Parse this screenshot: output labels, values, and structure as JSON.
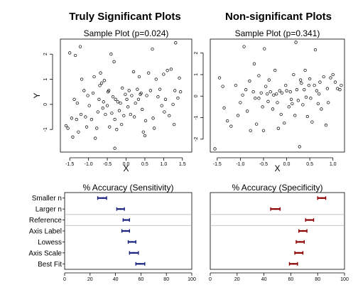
{
  "header": {
    "left_title": "Truly Significant Plots",
    "right_title": "Non-significant Plots"
  },
  "chart_data": [
    {
      "type": "scatter",
      "title": "Sample Plot (p=0.024)",
      "xlabel": "X",
      "ylabel": "Y",
      "xlim": [
        -1.75,
        1.75
      ],
      "ylim": [
        -1.9,
        2.6
      ],
      "xticks": [
        "-1.5",
        "-1.0",
        "-0.5",
        "0.0",
        "0.5",
        "1.0",
        "1.5"
      ],
      "yticks": [
        "-1",
        "0",
        "1",
        "2"
      ],
      "points": [
        [
          -1.6,
          -0.85
        ],
        [
          -1.55,
          -0.95
        ],
        [
          -1.5,
          2.05
        ],
        [
          -1.45,
          -0.55
        ],
        [
          -1.42,
          -1.3
        ],
        [
          -1.38,
          0.2
        ],
        [
          -1.35,
          1.95
        ],
        [
          -1.32,
          -0.6
        ],
        [
          -1.3,
          0.05
        ],
        [
          -1.27,
          -1.1
        ],
        [
          -1.22,
          2.3
        ],
        [
          -1.2,
          -0.4
        ],
        [
          -1.18,
          1.0
        ],
        [
          -1.12,
          0.55
        ],
        [
          -1.08,
          -0.5
        ],
        [
          -1.05,
          -0.9
        ],
        [
          -1.02,
          0.35
        ],
        [
          -0.98,
          -0.05
        ],
        [
          -0.92,
          -0.6
        ],
        [
          -0.88,
          0.45
        ],
        [
          -0.85,
          1.1
        ],
        [
          -0.82,
          -1.35
        ],
        [
          -0.78,
          -0.95
        ],
        [
          -0.75,
          -0.3
        ],
        [
          -0.72,
          0.2
        ],
        [
          -0.7,
          0.75
        ],
        [
          -0.68,
          1.25
        ],
        [
          -0.65,
          0.85
        ],
        [
          -0.62,
          -0.15
        ],
        [
          -0.6,
          0.1
        ],
        [
          -0.58,
          0.95
        ],
        [
          -0.55,
          -0.4
        ],
        [
          -0.5,
          -0.05
        ],
        [
          -0.48,
          0.5
        ],
        [
          -0.46,
          0.55
        ],
        [
          -0.44,
          -0.9
        ],
        [
          -0.4,
          2.0
        ],
        [
          -0.38,
          -0.35
        ],
        [
          -0.35,
          0.3
        ],
        [
          -0.32,
          1.7
        ],
        [
          -0.3,
          -0.6
        ],
        [
          -0.28,
          0.2
        ],
        [
          -0.25,
          -1.0
        ],
        [
          -0.22,
          0.1
        ],
        [
          -0.18,
          -0.25
        ],
        [
          -0.15,
          0.05
        ],
        [
          -0.12,
          -0.8
        ],
        [
          -0.1,
          0.65
        ],
        [
          -0.06,
          -0.45
        ],
        [
          -0.02,
          0.4
        ],
        [
          0.02,
          0.2
        ],
        [
          0.05,
          -0.1
        ],
        [
          0.08,
          0.55
        ],
        [
          0.12,
          -0.4
        ],
        [
          0.15,
          0.35
        ],
        [
          0.2,
          1.3
        ],
        [
          0.22,
          -0.5
        ],
        [
          0.25,
          0.05
        ],
        [
          0.3,
          0.6
        ],
        [
          0.33,
          0.2
        ],
        [
          0.35,
          1.1
        ],
        [
          0.38,
          0.4
        ],
        [
          0.4,
          0.45
        ],
        [
          0.43,
          -0.2
        ],
        [
          0.46,
          -1.1
        ],
        [
          0.5,
          -1.25
        ],
        [
          0.52,
          -0.65
        ],
        [
          0.55,
          0.35
        ],
        [
          0.6,
          1.25
        ],
        [
          0.65,
          0.55
        ],
        [
          0.7,
          2.2
        ],
        [
          0.72,
          -0.55
        ],
        [
          0.75,
          -0.95
        ],
        [
          0.8,
          1.0
        ],
        [
          0.85,
          0.3
        ],
        [
          0.9,
          0.6
        ],
        [
          0.95,
          -0.05
        ],
        [
          1.0,
          1.2
        ],
        [
          1.02,
          -0.3
        ],
        [
          1.05,
          0.2
        ],
        [
          1.1,
          1.35
        ],
        [
          1.15,
          -0.45
        ],
        [
          1.2,
          1.4
        ],
        [
          1.25,
          0.0
        ],
        [
          1.28,
          -0.8
        ],
        [
          1.3,
          0.55
        ],
        [
          1.32,
          2.45
        ],
        [
          1.38,
          0.25
        ],
        [
          1.42,
          1.05
        ],
        [
          1.45,
          0.5
        ],
        [
          -0.3,
          -1.75
        ]
      ]
    },
    {
      "type": "scatter",
      "title": "Sample Plot (p=0.341)",
      "xlabel": "X",
      "ylabel": "",
      "xlim": [
        -1.65,
        1.25
      ],
      "ylim": [
        -2.6,
        2.65
      ],
      "xticks": [
        "-1.5",
        "-1.0",
        "-0.5",
        "0.0",
        "0.5",
        "1.0"
      ],
      "yticks": [
        "-2",
        "-1",
        "0",
        "1",
        "2"
      ],
      "points": [
        [
          -1.55,
          -2.45
        ],
        [
          -1.45,
          0.85
        ],
        [
          -1.35,
          -0.55
        ],
        [
          -1.28,
          -1.15
        ],
        [
          -1.2,
          -1.4
        ],
        [
          -1.1,
          0.5
        ],
        [
          -1.05,
          -0.9
        ],
        [
          -1.0,
          -0.3
        ],
        [
          -0.95,
          0.05
        ],
        [
          -0.92,
          2.3
        ],
        [
          -0.88,
          0.3
        ],
        [
          -0.85,
          -0.7
        ],
        [
          -0.8,
          0.7
        ],
        [
          -0.78,
          -1.6
        ],
        [
          -0.72,
          0.2
        ],
        [
          -0.7,
          1.5
        ],
        [
          -0.68,
          -0.1
        ],
        [
          -0.65,
          -1.3
        ],
        [
          -0.6,
          0.95
        ],
        [
          -0.55,
          0.15
        ],
        [
          -0.52,
          -0.5
        ],
        [
          -0.5,
          -1.6
        ],
        [
          -0.48,
          2.2
        ],
        [
          -0.45,
          0.45
        ],
        [
          -0.42,
          0.1
        ],
        [
          -0.4,
          -0.25
        ],
        [
          -0.38,
          0.75
        ],
        [
          -0.35,
          0.2
        ],
        [
          -0.3,
          -0.6
        ],
        [
          -0.28,
          0.05
        ],
        [
          -0.25,
          1.2
        ],
        [
          -0.22,
          0.1
        ],
        [
          -0.2,
          -0.3
        ],
        [
          -0.18,
          -1.5
        ],
        [
          -0.15,
          0.25
        ],
        [
          -0.12,
          -0.85
        ],
        [
          -0.1,
          0.15
        ],
        [
          -0.05,
          -1.25
        ],
        [
          -0.02,
          0.5
        ],
        [
          0.0,
          0.25
        ],
        [
          0.05,
          -0.5
        ],
        [
          0.08,
          0.2
        ],
        [
          0.12,
          -0.35
        ],
        [
          0.15,
          1.0
        ],
        [
          0.18,
          -0.9
        ],
        [
          0.2,
          2.5
        ],
        [
          0.22,
          0.3
        ],
        [
          0.25,
          -0.2
        ],
        [
          0.28,
          -2.35
        ],
        [
          0.3,
          0.75
        ],
        [
          0.32,
          0.6
        ],
        [
          0.35,
          -0.4
        ],
        [
          0.38,
          0.3
        ],
        [
          0.4,
          1.2
        ],
        [
          0.42,
          -0.05
        ],
        [
          0.45,
          -0.95
        ],
        [
          0.48,
          0.5
        ],
        [
          0.5,
          0.8
        ],
        [
          0.52,
          -0.1
        ],
        [
          0.55,
          -1.2
        ],
        [
          0.6,
          0.5
        ],
        [
          0.62,
          2.15
        ],
        [
          0.65,
          0.25
        ],
        [
          0.68,
          -0.35
        ],
        [
          0.72,
          0.65
        ],
        [
          0.75,
          -0.6
        ],
        [
          0.8,
          0.9
        ],
        [
          0.85,
          -1.35
        ],
        [
          0.88,
          0.35
        ],
        [
          0.9,
          -0.3
        ],
        [
          0.95,
          0.85
        ],
        [
          1.0,
          1.0
        ],
        [
          1.05,
          0.65
        ],
        [
          1.1,
          0.35
        ],
        [
          1.15,
          0.3
        ],
        [
          1.18,
          0.5
        ],
        [
          -1.38,
          0.45
        ],
        [
          0.1,
          -0.15
        ],
        [
          0.7,
          0.1
        ],
        [
          -0.6,
          -0.1
        ]
      ]
    },
    {
      "type": "interval",
      "title": "% Accuracy (Sensitivity)",
      "categories": [
        "Smaller n",
        "Larger n",
        "Reference",
        "Axis Label",
        "Lowess",
        "Axis Scale",
        "Best Fit"
      ],
      "xlim": [
        0,
        100
      ],
      "xticks": [
        "0",
        "20",
        "40",
        "60",
        "80",
        "100"
      ],
      "lower": [
        26,
        41,
        46,
        45,
        50,
        51,
        56
      ],
      "center": [
        30,
        44,
        48,
        48,
        53,
        54,
        59
      ],
      "upper": [
        33,
        47,
        51,
        51,
        56,
        58,
        63
      ],
      "separators_after": [
        "Larger n",
        "Reference"
      ],
      "color": "#1a237e"
    },
    {
      "type": "interval",
      "title": "% Accuracy (Specificity)",
      "categories": [
        "Smaller n",
        "Larger n",
        "Reference",
        "Axis Label",
        "Lowess",
        "Axis Scale",
        "Best Fit"
      ],
      "xlim": [
        0,
        100
      ],
      "xticks": [
        "0",
        "20",
        "40",
        "60",
        "80",
        "100"
      ],
      "lower": [
        80,
        45,
        71,
        66,
        64,
        63,
        59
      ],
      "center": [
        83,
        49,
        74,
        69,
        67,
        66,
        62
      ],
      "upper": [
        86,
        52,
        77,
        72,
        70,
        69,
        65
      ],
      "separators_after": [
        "Larger n",
        "Reference"
      ],
      "color": "#8b0000"
    }
  ]
}
